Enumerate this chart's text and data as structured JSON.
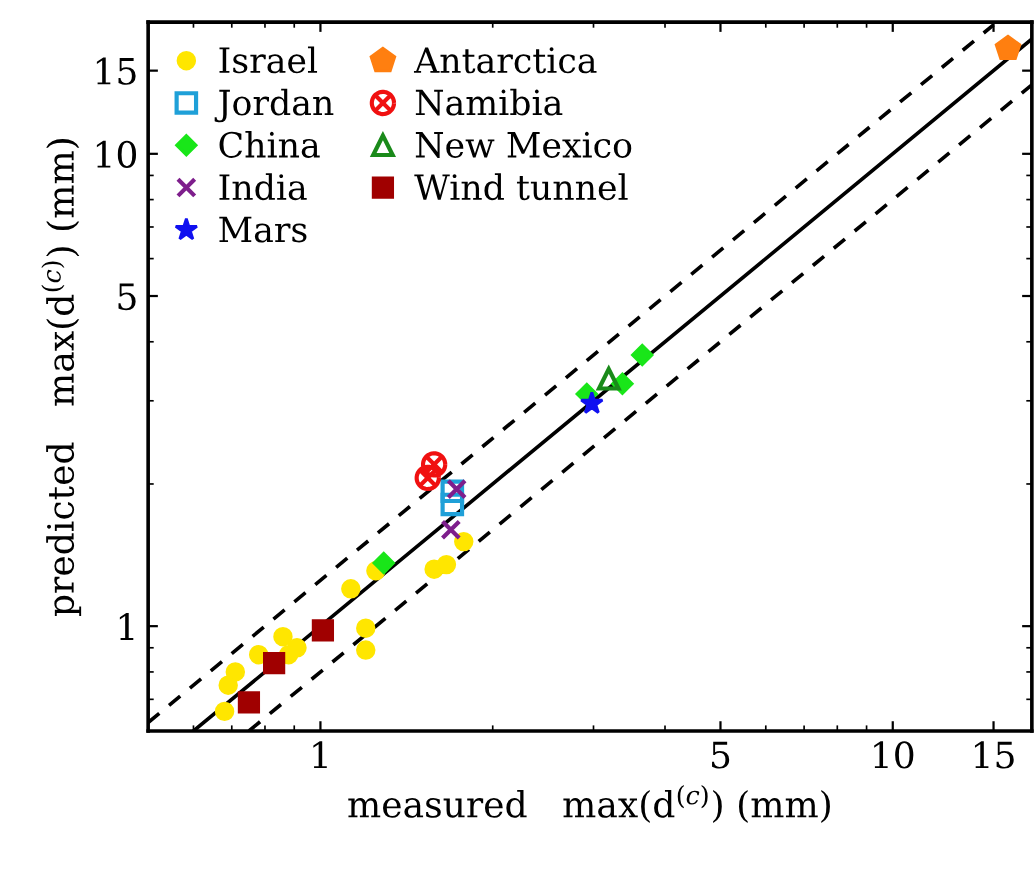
{
  "chart_data": {
    "type": "scatter",
    "xlabel": "measured   max(d$^{(c)}$) (mm)",
    "ylabel": "predicted   max(d$^{(c)}$) (mm)",
    "log": "xy",
    "xlim": [
      0.5,
      17.5
    ],
    "ylim": [
      0.6,
      19
    ],
    "xticks": [
      1,
      5,
      10,
      15
    ],
    "yticks": [
      1,
      5,
      10,
      15
    ],
    "grid": false,
    "legend": "top left",
    "series": [
      {
        "type": "line",
        "color": "#000000",
        "line_style": "solid",
        "marker": "none",
        "x": [
          0.6,
          17.5
        ],
        "values": [
          0.6,
          17.5
        ]
      },
      {
        "type": "line",
        "color": "#000000",
        "line_style": "dashed",
        "marker": "none",
        "x": [
          0.5,
          15
        ],
        "values": [
          0.625,
          18.75
        ]
      },
      {
        "type": "line",
        "color": "#000000",
        "line_style": "dashed",
        "marker": "none",
        "x": [
          0.75,
          17.5
        ],
        "values": [
          0.6,
          14
        ]
      },
      {
        "name": "Israel",
        "color": "#ffe600",
        "marker": "circle",
        "x": [
          0.68,
          0.69,
          0.71,
          0.78,
          0.86,
          0.88,
          0.91,
          1.13,
          1.2,
          1.2,
          1.25,
          1.58,
          1.66,
          1.78
        ],
        "values": [
          0.66,
          0.75,
          0.8,
          0.87,
          0.95,
          0.87,
          0.9,
          1.2,
          0.99,
          0.89,
          1.31,
          1.32,
          1.35,
          1.51
        ]
      },
      {
        "name": "Jordan",
        "color": "#1fa0d8",
        "marker": "square",
        "x": [
          1.7,
          1.7
        ],
        "values": [
          1.93,
          1.81
        ]
      },
      {
        "name": "China",
        "color": "#19e619",
        "marker": "diamond",
        "x": [
          1.29,
          2.92,
          3.37,
          3.65
        ],
        "values": [
          1.36,
          3.1,
          3.26,
          3.75
        ]
      },
      {
        "name": "India",
        "color": "#7e1e8c",
        "marker": "cross",
        "x": [
          1.73,
          1.69
        ],
        "values": [
          1.95,
          1.6
        ]
      },
      {
        "name": "Mars",
        "color": "#1010f0",
        "marker": "star",
        "x": [
          2.98
        ],
        "values": [
          2.96
        ]
      },
      {
        "name": "Antarctica",
        "color": "#ff7f10",
        "x": [
          15.9
        ],
        "values": [
          16.7
        ]
      },
      {
        "name": "Namibia",
        "color": "#f01010",
        "x": [
          1.58,
          1.54
        ],
        "values": [
          2.2,
          2.06
        ]
      },
      {
        "name": "New Mexico",
        "color": "#1a8a1a",
        "marker": "triangle",
        "x": [
          3.19
        ],
        "values": [
          3.34
        ]
      },
      {
        "name": "Wind tunnel",
        "color": "#a00000",
        "marker": "square",
        "x": [
          0.75,
          0.83,
          1.01
        ],
        "values": [
          0.69,
          0.835,
          0.98
        ]
      }
    ]
  }
}
